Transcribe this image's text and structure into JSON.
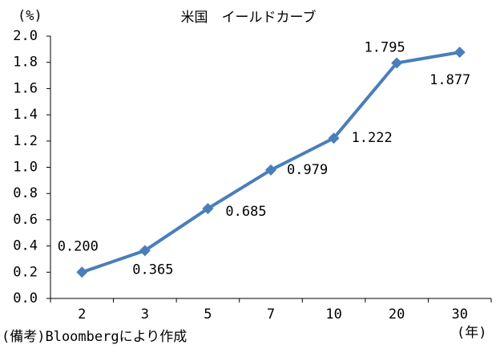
{
  "chart_data": {
    "type": "line",
    "title": "米国　イールドカーブ",
    "y_unit": "(%)",
    "x_unit": "(年)",
    "note": "(備考)Bloombergにより作成",
    "categories": [
      "2",
      "3",
      "5",
      "7",
      "10",
      "20",
      "30"
    ],
    "values": [
      0.2,
      0.365,
      0.685,
      0.979,
      1.222,
      1.795,
      1.877
    ],
    "value_labels": [
      "0.200",
      "0.365",
      "0.685",
      "0.979",
      "1.222",
      "1.795",
      "1.877"
    ],
    "color": "#4a7ebb",
    "ylim": [
      0,
      2
    ],
    "yticks": [
      {
        "value": 0,
        "label": "0.0"
      },
      {
        "value": 0.2,
        "label": "0.2"
      },
      {
        "value": 0.4,
        "label": "0.4"
      },
      {
        "value": 0.6,
        "label": "0.6"
      },
      {
        "value": 0.8,
        "label": "0.8"
      },
      {
        "value": 1,
        "label": "1.0"
      },
      {
        "value": 1.2,
        "label": "1.2"
      },
      {
        "value": 1.4,
        "label": "1.4"
      },
      {
        "value": 1.6,
        "label": "1.6"
      },
      {
        "value": 1.8,
        "label": "1.8"
      },
      {
        "value": 2,
        "label": "2.0"
      }
    ]
  }
}
